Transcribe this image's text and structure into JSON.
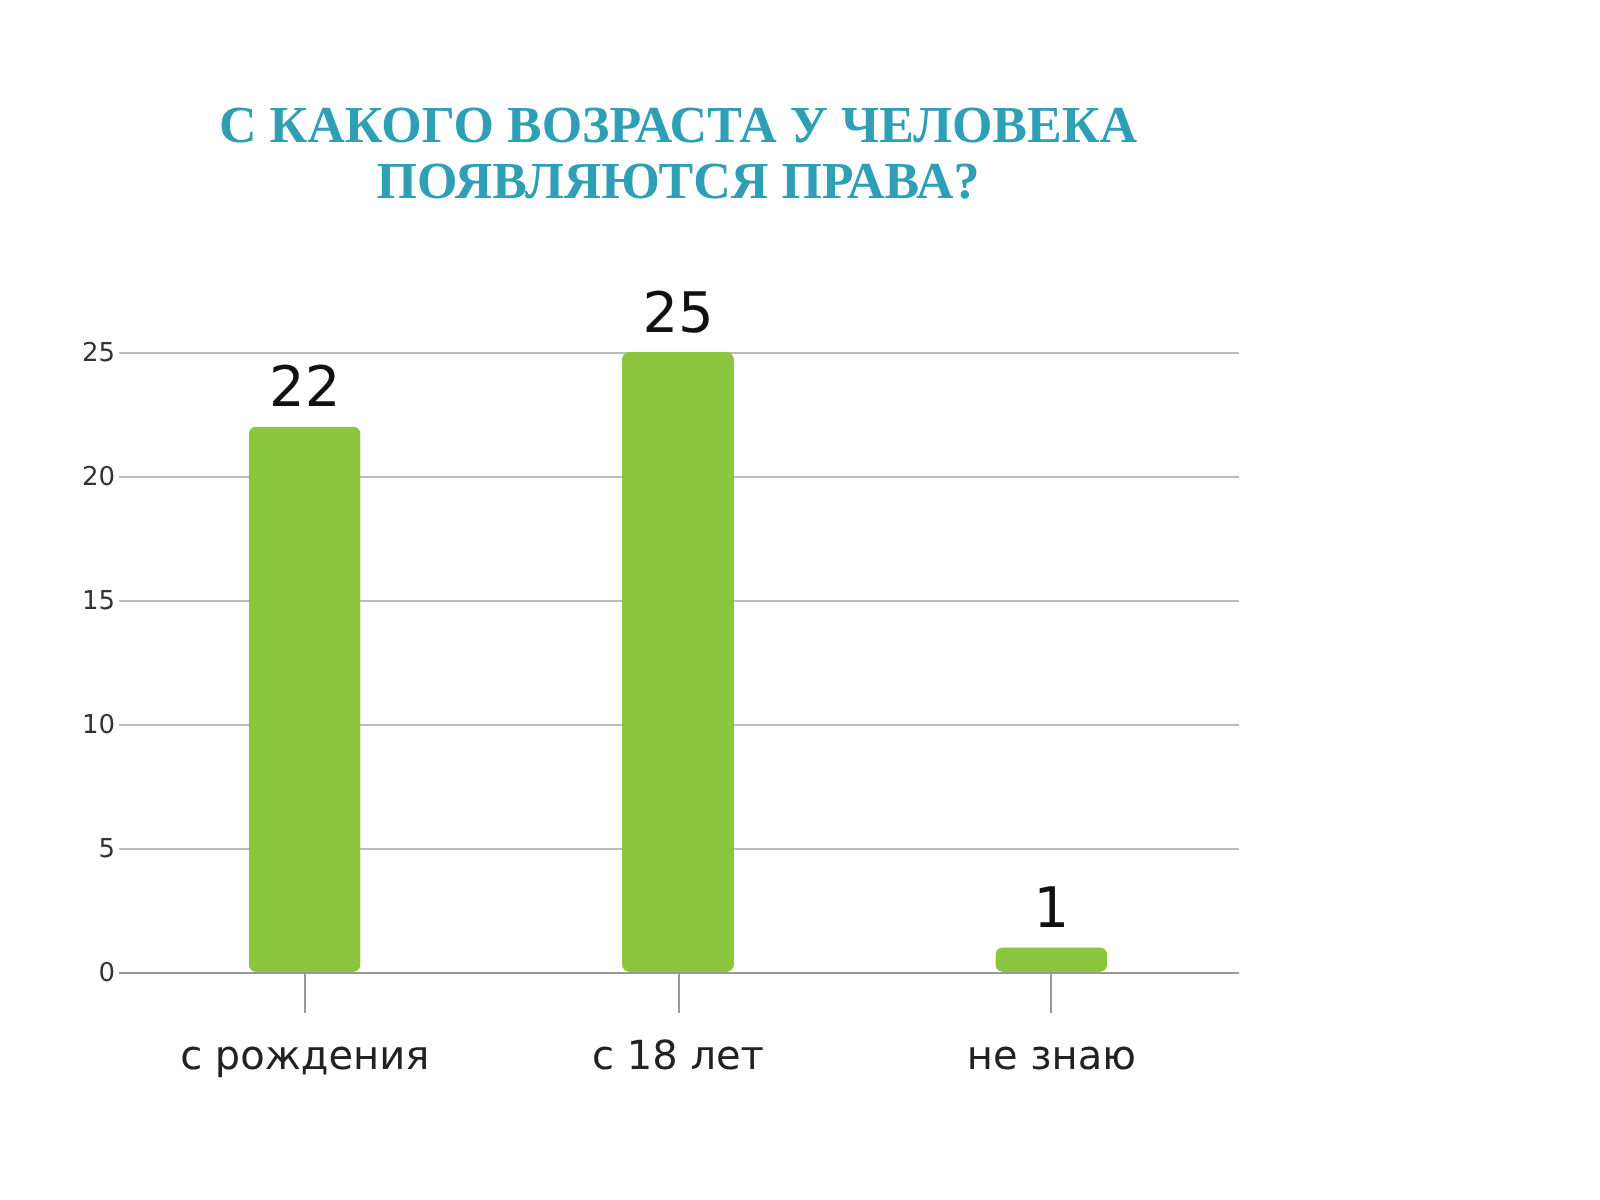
{
  "chart_data": {
    "type": "bar",
    "title": "С КАКОГО  ВОЗРАСТА У ЧЕЛОВЕКА\nПОЯВЛЯЮТСЯ ПРАВА?",
    "categories": [
      "с рождения",
      "с 18 лет",
      "не знаю"
    ],
    "values": [
      22,
      25,
      1
    ],
    "color": "#8cc63f",
    "ylim": [
      0,
      25
    ],
    "yticks": [
      0,
      5,
      10,
      15,
      20,
      25
    ],
    "grid": "y",
    "data_labels": true
  }
}
